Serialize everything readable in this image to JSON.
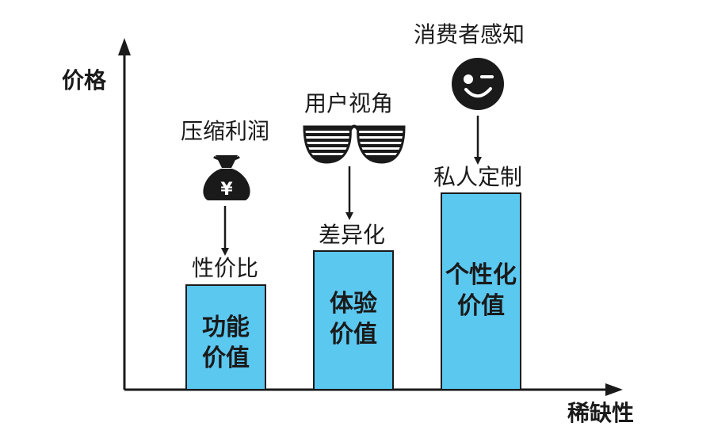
{
  "axes": {
    "y_label": "价格",
    "x_label": "稀缺性"
  },
  "bars": [
    {
      "top_label": "性价比",
      "inner_line1": "功能",
      "inner_line2": "价值",
      "color": "#5bc8f0"
    },
    {
      "top_label": "差异化",
      "inner_line1": "体验",
      "inner_line2": "价值",
      "color": "#5bc8f0"
    },
    {
      "top_label": "私人定制",
      "inner_line1": "个性化",
      "inner_line2": "价值",
      "color": "#5bc8f0"
    }
  ],
  "drivers": [
    {
      "label": "压缩利润",
      "icon": "money-bag-icon",
      "symbol": "¥"
    },
    {
      "label": "用户视角",
      "icon": "sunglasses-icon"
    },
    {
      "label": "消费者感知",
      "icon": "wink-face-icon"
    }
  ],
  "colors": {
    "bar_fill": "#5bc8f0",
    "ink": "#1a1a1a"
  }
}
